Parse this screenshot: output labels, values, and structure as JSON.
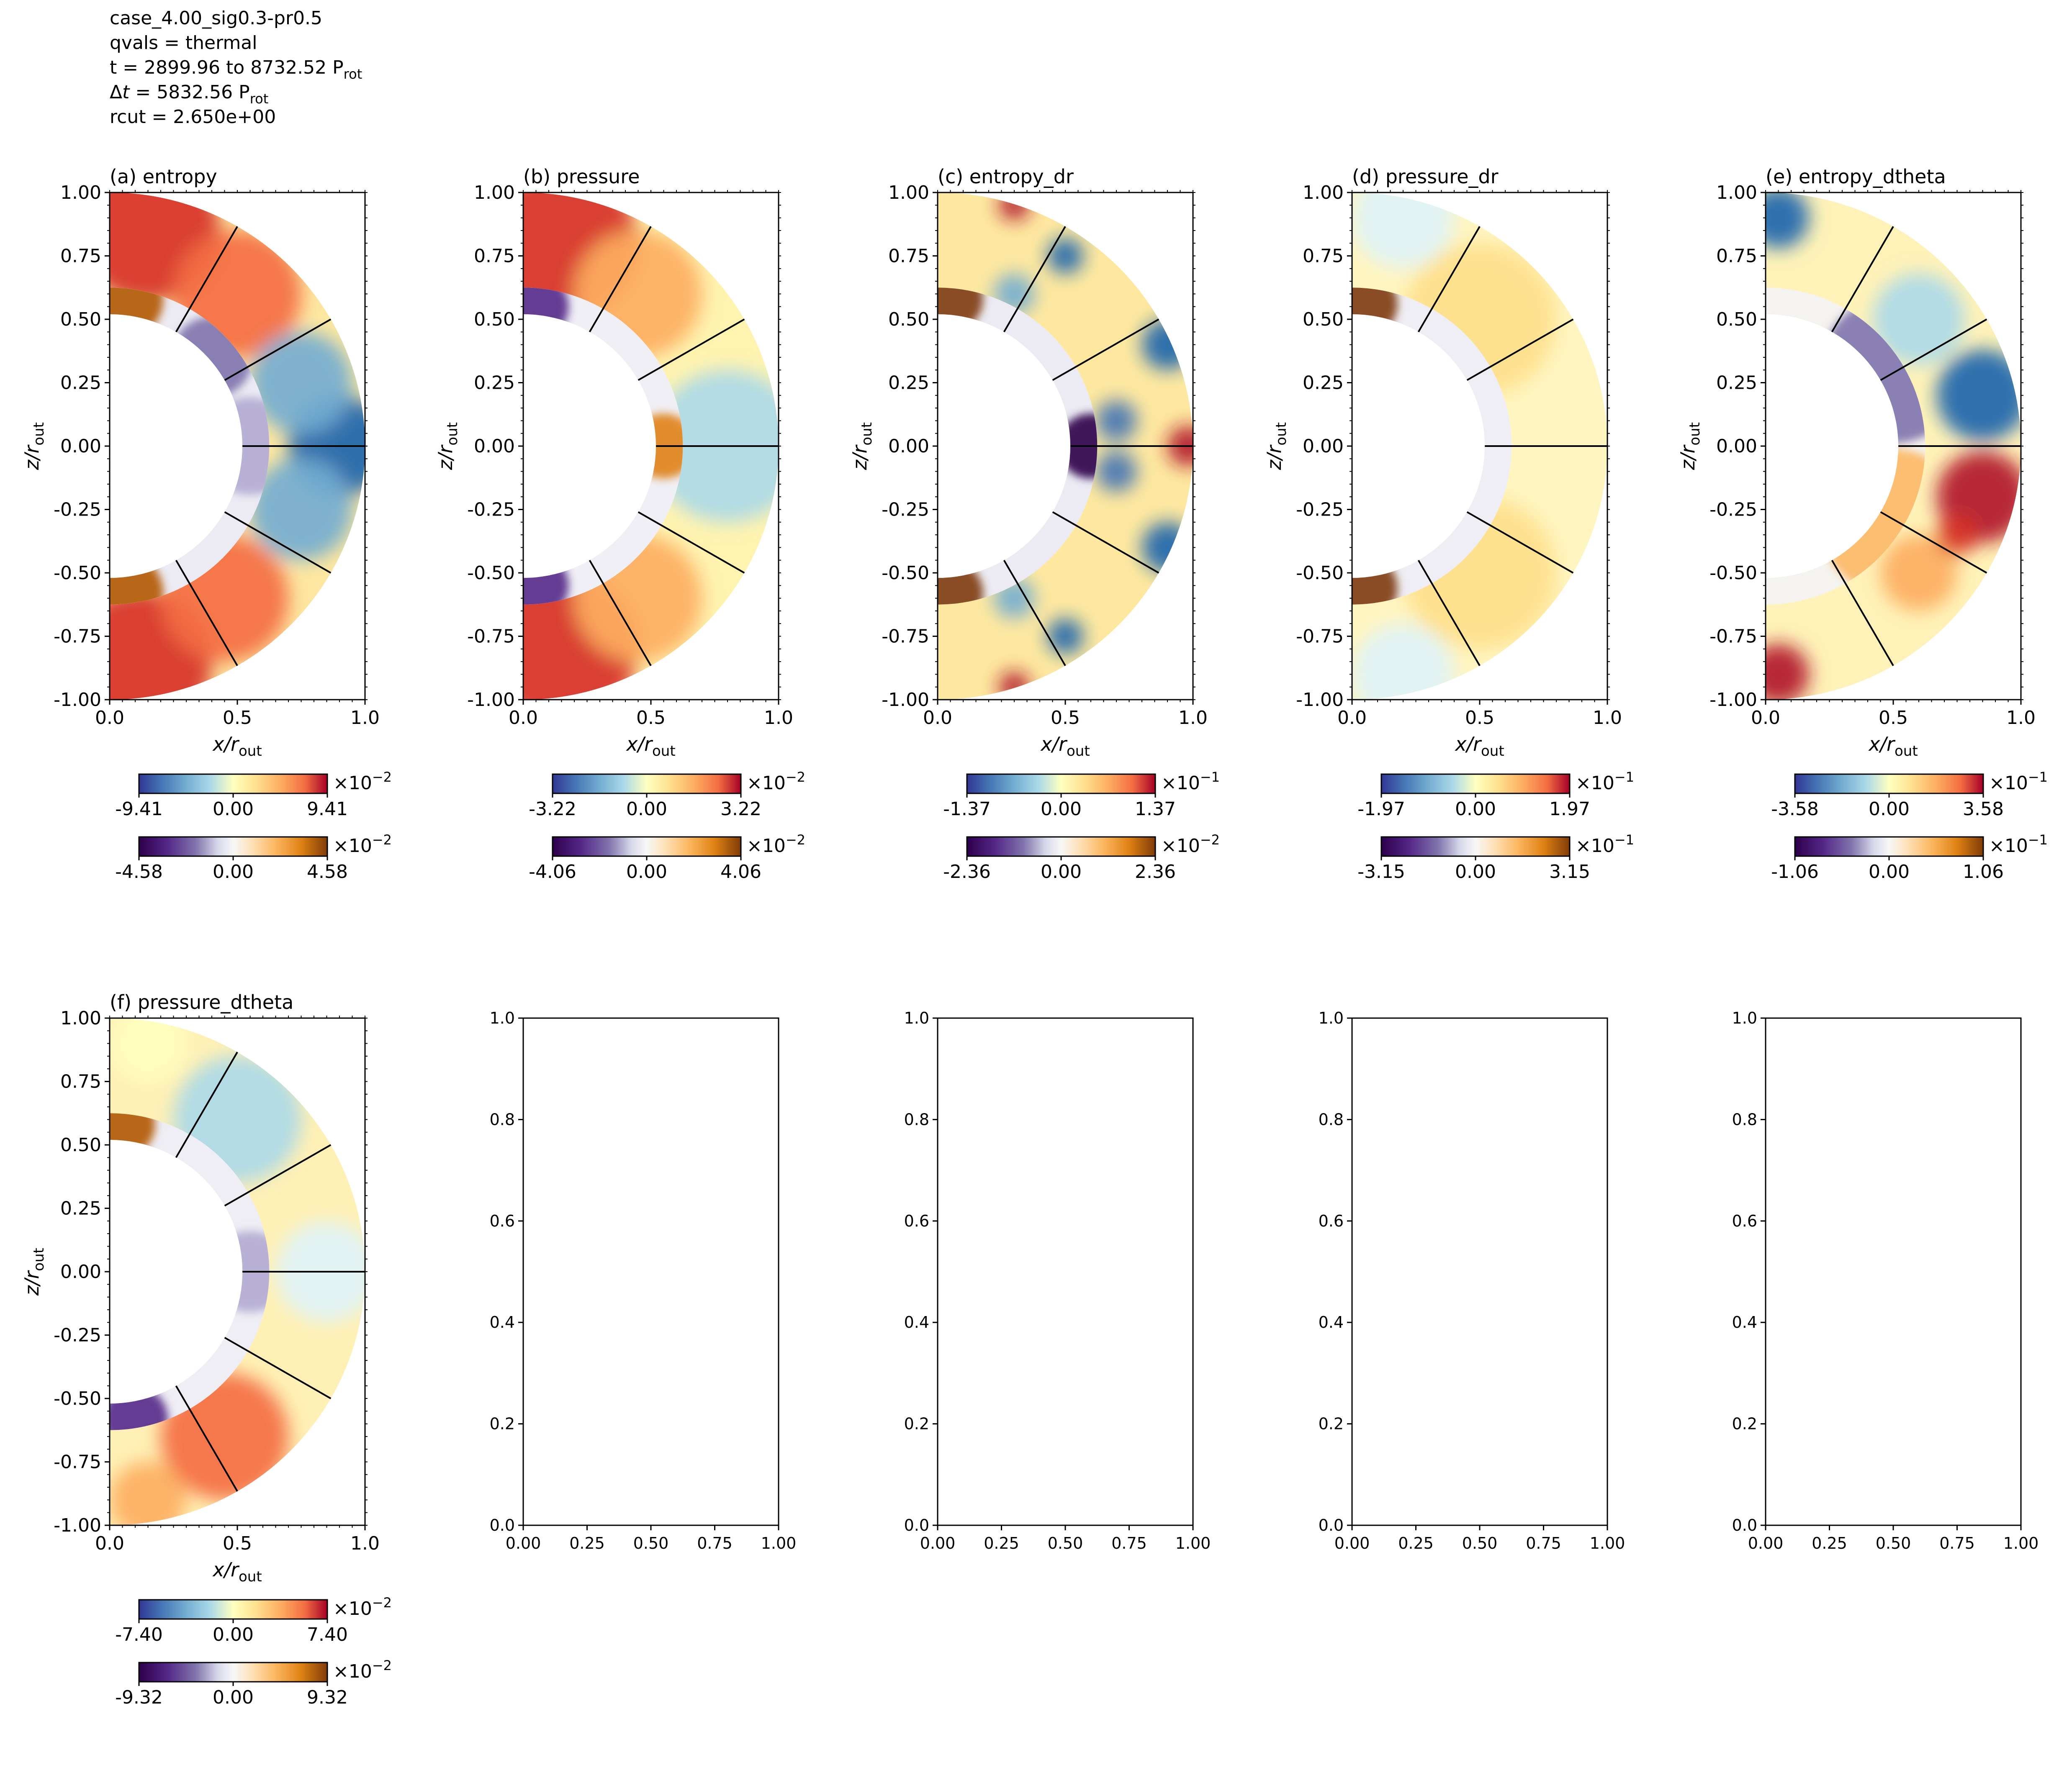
{
  "header": {
    "case": "case_4.00_sig0.3-pr0.5",
    "qvals": "qvals = thermal",
    "t_range": "t = 2899.96 to 8732.52 P",
    "t_sub": "rot",
    "dt_prefix": "Δ",
    "dt_t": "t",
    "dt_value": " = 5832.56 P",
    "dt_sub": "rot",
    "rcut": "rcut = 2.650e+00"
  },
  "colors": {
    "diverging_map": "RdYlBu_r",
    "inner_map": "PuOr_r",
    "grid_lines": "#000000"
  },
  "axis_labels": {
    "x_main": "x/r",
    "x_sub": "out",
    "y_main": "z/r",
    "y_sub": "out"
  },
  "chart_data": [
    {
      "type": "heatmap",
      "panel": "a",
      "title": "(a) entropy",
      "xlim": [
        0.0,
        1.0
      ],
      "ylim": [
        -1.0,
        1.0
      ],
      "x_ticks": [
        "0.0",
        "0.5",
        "1.0"
      ],
      "y_ticks": [
        "1.00",
        "0.75",
        "0.50",
        "0.25",
        "0.00",
        "-0.25",
        "-0.50",
        "-0.75",
        "-1.00"
      ],
      "colorbar_outer": {
        "exponent": "×10",
        "power": "−2",
        "ticks": [
          "-9.41",
          "0.00",
          "9.41"
        ],
        "cmap": "RdYlBu_r"
      },
      "colorbar_inner": {
        "exponent": "×10",
        "power": "−2",
        "ticks": [
          "-4.58",
          "0.00",
          "4.58"
        ],
        "cmap": "PuOr_r"
      }
    },
    {
      "type": "heatmap",
      "panel": "b",
      "title": "(b) pressure",
      "xlim": [
        0.0,
        1.0
      ],
      "ylim": [
        -1.0,
        1.0
      ],
      "x_ticks": [
        "0.0",
        "0.5",
        "1.0"
      ],
      "y_ticks": [
        "1.00",
        "0.75",
        "0.50",
        "0.25",
        "0.00",
        "-0.25",
        "-0.50",
        "-0.75",
        "-1.00"
      ],
      "colorbar_outer": {
        "exponent": "×10",
        "power": "−2",
        "ticks": [
          "-3.22",
          "0.00",
          "3.22"
        ],
        "cmap": "RdYlBu_r"
      },
      "colorbar_inner": {
        "exponent": "×10",
        "power": "−2",
        "ticks": [
          "-4.06",
          "0.00",
          "4.06"
        ],
        "cmap": "PuOr_r"
      }
    },
    {
      "type": "heatmap",
      "panel": "c",
      "title": "(c) entropy_dr",
      "xlim": [
        0.0,
        1.0
      ],
      "ylim": [
        -1.0,
        1.0
      ],
      "x_ticks": [
        "0.0",
        "0.5",
        "1.0"
      ],
      "y_ticks": [
        "1.00",
        "0.75",
        "0.50",
        "0.25",
        "0.00",
        "-0.25",
        "-0.50",
        "-0.75",
        "-1.00"
      ],
      "colorbar_outer": {
        "exponent": "×10",
        "power": "−1",
        "ticks": [
          "-1.37",
          "0.00",
          "1.37"
        ],
        "cmap": "RdYlBu_r"
      },
      "colorbar_inner": {
        "exponent": "×10",
        "power": "−2",
        "ticks": [
          "-2.36",
          "0.00",
          "2.36"
        ],
        "cmap": "PuOr_r"
      }
    },
    {
      "type": "heatmap",
      "panel": "d",
      "title": "(d) pressure_dr",
      "xlim": [
        0.0,
        1.0
      ],
      "ylim": [
        -1.0,
        1.0
      ],
      "x_ticks": [
        "0.0",
        "0.5",
        "1.0"
      ],
      "y_ticks": [
        "1.00",
        "0.75",
        "0.50",
        "0.25",
        "0.00",
        "-0.25",
        "-0.50",
        "-0.75",
        "-1.00"
      ],
      "colorbar_outer": {
        "exponent": "×10",
        "power": "−1",
        "ticks": [
          "-1.97",
          "0.00",
          "1.97"
        ],
        "cmap": "RdYlBu_r"
      },
      "colorbar_inner": {
        "exponent": "×10",
        "power": "−1",
        "ticks": [
          "-3.15",
          "0.00",
          "3.15"
        ],
        "cmap": "PuOr_r"
      }
    },
    {
      "type": "heatmap",
      "panel": "e",
      "title": "(e) entropy_dtheta",
      "xlim": [
        0.0,
        1.0
      ],
      "ylim": [
        -1.0,
        1.0
      ],
      "x_ticks": [
        "0.0",
        "0.5",
        "1.0"
      ],
      "y_ticks": [
        "1.00",
        "0.75",
        "0.50",
        "0.25",
        "0.00",
        "-0.25",
        "-0.50",
        "-0.75",
        "-1.00"
      ],
      "colorbar_outer": {
        "exponent": "×10",
        "power": "−1",
        "ticks": [
          "-3.58",
          "0.00",
          "3.58"
        ],
        "cmap": "RdYlBu_r"
      },
      "colorbar_inner": {
        "exponent": "×10",
        "power": "−1",
        "ticks": [
          "-1.06",
          "0.00",
          "1.06"
        ],
        "cmap": "PuOr_r"
      }
    },
    {
      "type": "heatmap",
      "panel": "f",
      "title": "(f) pressure_dtheta",
      "xlim": [
        0.0,
        1.0
      ],
      "ylim": [
        -1.0,
        1.0
      ],
      "x_ticks": [
        "0.0",
        "0.5",
        "1.0"
      ],
      "y_ticks": [
        "1.00",
        "0.75",
        "0.50",
        "0.25",
        "0.00",
        "-0.25",
        "-0.50",
        "-0.75",
        "-1.00"
      ],
      "colorbar_outer": {
        "exponent": "×10",
        "power": "−2",
        "ticks": [
          "-7.40",
          "0.00",
          "7.40"
        ],
        "cmap": "RdYlBu_r"
      },
      "colorbar_inner": {
        "exponent": "×10",
        "power": "−2",
        "ticks": [
          "-9.32",
          "0.00",
          "9.32"
        ],
        "cmap": "PuOr_r"
      }
    }
  ],
  "empty_axes": {
    "xlim": [
      0.0,
      1.0
    ],
    "ylim": [
      0.0,
      1.0
    ],
    "x_ticks": [
      "0.00",
      "0.25",
      "0.50",
      "0.75",
      "1.00"
    ],
    "y_ticks": [
      "1.0",
      "0.8",
      "0.6",
      "0.4",
      "0.2",
      "0.0"
    ]
  }
}
